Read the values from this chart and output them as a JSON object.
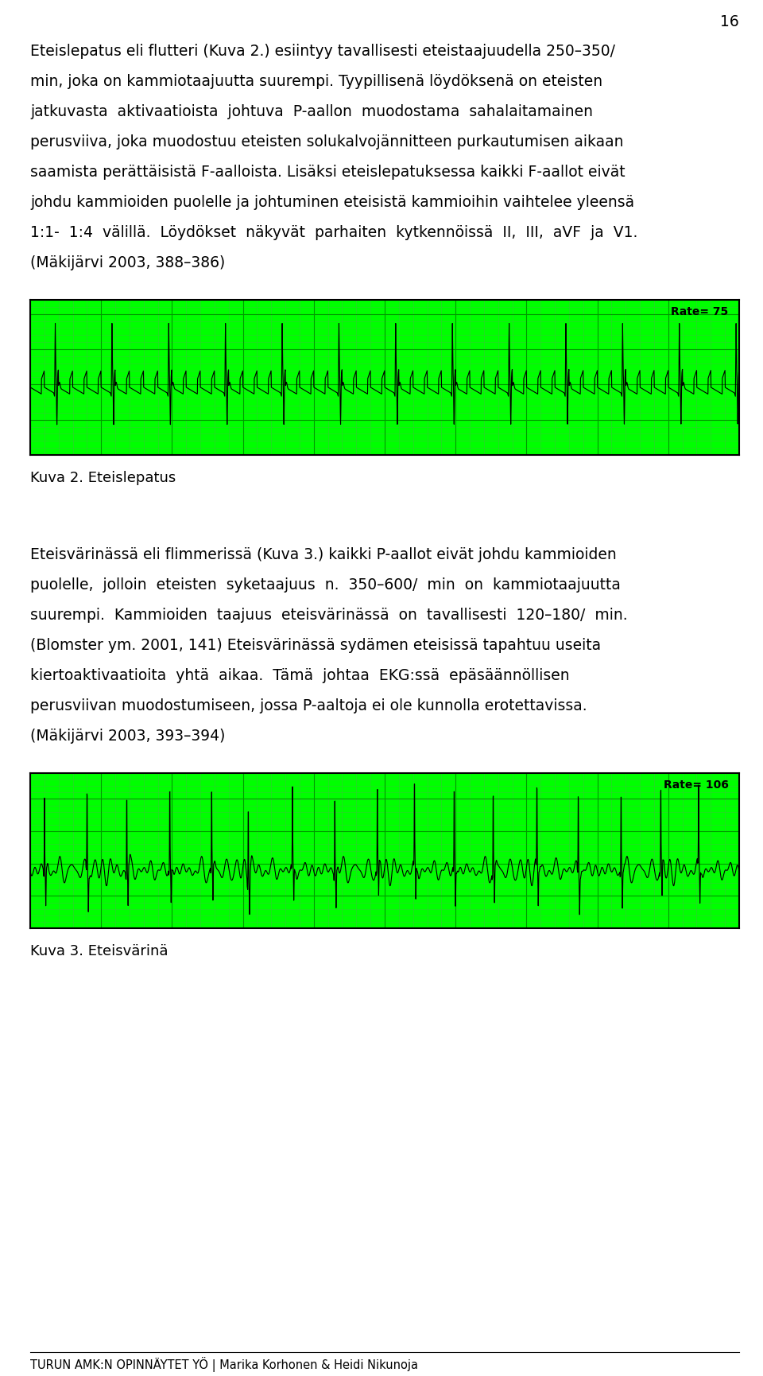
{
  "page_number": "16",
  "background_color": "#ffffff",
  "text_color": "#000000",
  "font_size_body": 13.5,
  "font_size_caption": 13.0,
  "font_size_footer": 10.5,
  "paragraph1_lines": [
    "Eteislepatus eli flutteri (Kuva 2.) esiintyy tavallisesti eteistaajuudella 250–350/",
    "min, joka on kammiotaajuutta suurempi. Tyypillisenä löydöksenä on eteisten",
    "jatkuvasta  aktivaatioista  johtuva  P-aallon  muodostama  sahalaitamainen",
    "perusviiva, joka muodostuu eteisten solukalvojännitteen purkautumisen aikaan",
    "saamista perättäisistä F-aalloista. Lisäksi eteislepatuksessa kaikki F-aallot eivät",
    "johdu kammioiden puolelle ja johtuminen eteisistä kammioihin vaihtelee yleensä",
    "1:1-  1:4  välillä.  Löydökset  näkyvät  parhaiten  kytkennöissä  II,  III,  aVF  ja  V1.",
    "(Mäkijärvi 2003, 388–386)"
  ],
  "ecg1_label": "Rate= 75",
  "caption1": "Kuva 2. Eteislepatus",
  "paragraph2_lines": [
    "Eteisvärinässä eli flimmerissä (Kuva 3.) kaikki P-aallot eivät johdu kammioiden",
    "puolelle,  jolloin  eteisten  syketaajuus  n.  350–600/  min  on  kammiotaajuutta",
    "suurempi.  Kammioiden  taajuus  eteisvärinässä  on  tavallisesti  120–180/  min.",
    "(Blomster ym. 2001, 141) Eteisvärinässä sydämen eteisissä tapahtuu useita",
    "kiertoaktivaatioita  yhtä  aikaa.  Tämä  johtaa  EKG:ssä  epäsäännöllisen",
    "perusviivan muodostumiseen, jossa P-aaltoja ei ole kunnolla erotettavissa.",
    "(Mäkijärvi 2003, 393–394)"
  ],
  "ecg2_label": "Rate= 106",
  "caption2": "Kuva 3. Eteisvärinä",
  "footer": "TURUN AMK:N OPINNÄYTET YÖ | Marika Korhonen & Heidi Nikunoja",
  "ecg_bg_color": "#00ff00",
  "ecg_line_color": "#000000",
  "ecg_border_color": "#000000",
  "ecg_grid_minor": "#33cc33",
  "ecg_grid_major": "#009900"
}
